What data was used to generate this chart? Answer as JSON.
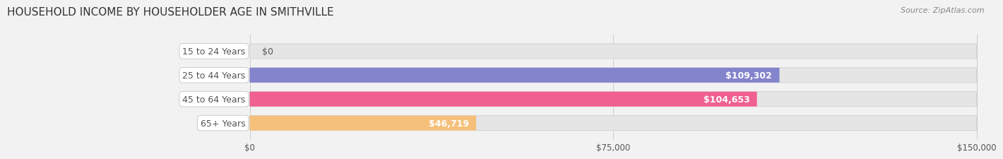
{
  "title": "HOUSEHOLD INCOME BY HOUSEHOLDER AGE IN SMITHVILLE",
  "source": "Source: ZipAtlas.com",
  "categories": [
    "15 to 24 Years",
    "25 to 44 Years",
    "45 to 64 Years",
    "65+ Years"
  ],
  "values": [
    0,
    109302,
    104653,
    46719
  ],
  "bar_colors": [
    "#5ecece",
    "#8484cc",
    "#f06090",
    "#f5c07a"
  ],
  "value_labels": [
    "$0",
    "$109,302",
    "$104,653",
    "$46,719"
  ],
  "xlim_max": 150000,
  "xticks": [
    0,
    75000,
    150000
  ],
  "xticklabels": [
    "$0",
    "$75,000",
    "$150,000"
  ],
  "background_color": "#f2f2f2",
  "bar_bg_color": "#e5e5e5",
  "title_fontsize": 11,
  "source_fontsize": 8,
  "label_fontsize": 9,
  "value_fontsize": 9,
  "tick_fontsize": 8.5,
  "bar_height": 0.62,
  "text_color": "#555555",
  "title_color": "#333333",
  "source_color": "#888888",
  "grid_color": "#cccccc",
  "label_bg_color": "#ffffff",
  "label_edge_color": "#cccccc"
}
